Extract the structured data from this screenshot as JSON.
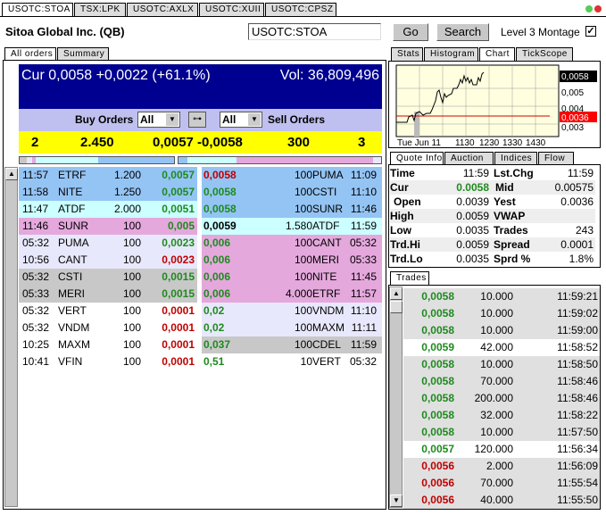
{
  "top_tabs": [
    "USOTC:STOA",
    "TSX:LPK",
    "USOTC:AXLX",
    "USOTC:XUII",
    "USOTC:CPSZ"
  ],
  "header": {
    "company": "Sitoa Global Inc. (QB)",
    "symbol_input": "USOTC:STOA",
    "go": "Go",
    "search": "Search",
    "level3_label": "Level 3 Montage",
    "level3_checked": true
  },
  "left_tabs": [
    "All orders",
    "Summary"
  ],
  "banner": {
    "cur": "Cur 0,0058 +0,0022 (+61.1%)",
    "vol": "Vol: 36,809,496"
  },
  "filters": {
    "buy_label": "Buy Orders",
    "buy_select": "All",
    "sell_select": "All",
    "sell_label": "Sell Orders"
  },
  "summary": {
    "buy_count": "2",
    "buy_size": "2.450",
    "bid": "0,0057",
    "ask": "-0,0058",
    "sell_size": "300",
    "sell_count": "3"
  },
  "colors": {
    "blue": "#94c4f4",
    "cyan": "#ccffff",
    "pink": "#e4a8dc",
    "lavender": "#e8e8fc",
    "gray": "#c8c8c8",
    "white": "#ffffff",
    "banner": "#000090",
    "yellow": "#ffff00",
    "green": "#1e8a1e",
    "red": "#c00000"
  },
  "buy_orders": [
    {
      "time": "11:57",
      "mm": "ETRF",
      "size": "1.200",
      "price": "0,0057",
      "pc": "g",
      "bg": "blue"
    },
    {
      "time": "11:58",
      "mm": "NITE",
      "size": "1.250",
      "price": "0,0057",
      "pc": "g",
      "bg": "blue"
    },
    {
      "time": "11:47",
      "mm": "ATDF",
      "size": "2.000",
      "price": "0,0051",
      "pc": "g",
      "bg": "cyan"
    },
    {
      "time": "11:46",
      "mm": "SUNR",
      "size": "100",
      "price": "0,005",
      "pc": "g",
      "bg": "pink"
    },
    {
      "time": "05:32",
      "mm": "PUMA",
      "size": "100",
      "price": "0,0023",
      "pc": "g",
      "bg": "lavender"
    },
    {
      "time": "10:56",
      "mm": "CANT",
      "size": "100",
      "price": "0,0023",
      "pc": "r",
      "bg": "lavender"
    },
    {
      "time": "05:32",
      "mm": "CSTI",
      "size": "100",
      "price": "0,0015",
      "pc": "g",
      "bg": "gray"
    },
    {
      "time": "05:33",
      "mm": "MERI",
      "size": "100",
      "price": "0,0015",
      "pc": "g",
      "bg": "gray"
    },
    {
      "time": "05:32",
      "mm": "VERT",
      "size": "100",
      "price": "0,0001",
      "pc": "r",
      "bg": "white"
    },
    {
      "time": "05:32",
      "mm": "VNDM",
      "size": "100",
      "price": "0,0001",
      "pc": "r",
      "bg": "white"
    },
    {
      "time": "10:25",
      "mm": "MAXM",
      "size": "100",
      "price": "0,0001",
      "pc": "r",
      "bg": "white"
    },
    {
      "time": "10:41",
      "mm": "VFIN",
      "size": "100",
      "price": "0,0001",
      "pc": "r",
      "bg": "white"
    }
  ],
  "sell_orders": [
    {
      "price": "0,0058",
      "pc": "r",
      "size": "100",
      "mm": "PUMA",
      "time": "11:09",
      "bg": "blue"
    },
    {
      "price": "0,0058",
      "pc": "g",
      "size": "100",
      "mm": "CSTI",
      "time": "11:10",
      "bg": "blue"
    },
    {
      "price": "0,0058",
      "pc": "g",
      "size": "100",
      "mm": "SUNR",
      "time": "11:46",
      "bg": "blue"
    },
    {
      "price": "0,0059",
      "pc": "k",
      "size": "1.580",
      "mm": "ATDF",
      "time": "11:59",
      "bg": "cyan"
    },
    {
      "price": "0,006",
      "pc": "g",
      "size": "100",
      "mm": "CANT",
      "time": "05:32",
      "bg": "pink"
    },
    {
      "price": "0,006",
      "pc": "g",
      "size": "100",
      "mm": "MERI",
      "time": "05:33",
      "bg": "pink"
    },
    {
      "price": "0,006",
      "pc": "g",
      "size": "100",
      "mm": "NITE",
      "time": "11:45",
      "bg": "pink"
    },
    {
      "price": "0,006",
      "pc": "g",
      "size": "4.000",
      "mm": "ETRF",
      "time": "11:57",
      "bg": "pink"
    },
    {
      "price": "0,02",
      "pc": "g",
      "size": "100",
      "mm": "VNDM",
      "time": "11:10",
      "bg": "lavender"
    },
    {
      "price": "0,02",
      "pc": "g",
      "size": "100",
      "mm": "MAXM",
      "time": "11:11",
      "bg": "lavender"
    },
    {
      "price": "0,037",
      "pc": "g",
      "size": "100",
      "mm": "CDEL",
      "time": "11:59",
      "bg": "gray"
    },
    {
      "price": "0,51",
      "pc": "g",
      "size": "10",
      "mm": "VERT",
      "time": "05:32",
      "bg": "white"
    }
  ],
  "right_tabs": [
    "Stats",
    "Histogram",
    "Chart",
    "TickScope"
  ],
  "chart": {
    "x_labels": [
      "Tue Jun 11",
      "1130",
      "1230",
      "1330",
      "1430"
    ],
    "y_labels": [
      "0,005",
      "0,004",
      "0,003"
    ],
    "cur_label": "0,0058",
    "yest_label": "0,0036"
  },
  "quote_tabs": [
    "Quote Info",
    "Auction",
    "Indices",
    "Flow"
  ],
  "quote": [
    {
      "l1": "Time",
      "v1": "11:59",
      "l2": "Lst.Chg",
      "v2": "11:59"
    },
    {
      "l1": "Cur",
      "v1": "0.0058",
      "l2": "Mid",
      "v2": "0.00575"
    },
    {
      "l1": "Open",
      "v1": "0.0039",
      "l2": "Yest",
      "v2": "0.0036"
    },
    {
      "l1": "High",
      "v1": "0.0059",
      "l2": "VWAP",
      "v2": ""
    },
    {
      "l1": "Low",
      "v1": "0.0035",
      "l2": "Trades",
      "v2": "243"
    },
    {
      "l1": "Trd.Hi",
      "v1": "0.0059",
      "l2": "Spread",
      "v2": "0.0001"
    },
    {
      "l1": "Trd.Lo",
      "v1": "0.0035",
      "l2": "Sprd %",
      "v2": "1.8%"
    }
  ],
  "trades_tab": "Trades",
  "trades": [
    {
      "price": "0,0058",
      "pc": "g",
      "size": "10.000",
      "time": "11:59:21",
      "hl": false
    },
    {
      "price": "0,0058",
      "pc": "g",
      "size": "10.000",
      "time": "11:59:02",
      "hl": false
    },
    {
      "price": "0,0058",
      "pc": "g",
      "size": "10.000",
      "time": "11:59:00",
      "hl": false
    },
    {
      "price": "0,0059",
      "pc": "g",
      "size": "42.000",
      "time": "11:58:52",
      "hl": true
    },
    {
      "price": "0,0058",
      "pc": "g",
      "size": "10.000",
      "time": "11:58:50",
      "hl": false
    },
    {
      "price": "0,0058",
      "pc": "g",
      "size": "70.000",
      "time": "11:58:46",
      "hl": false
    },
    {
      "price": "0,0058",
      "pc": "g",
      "size": "200.000",
      "time": "11:58:46",
      "hl": false
    },
    {
      "price": "0,0058",
      "pc": "g",
      "size": "32.000",
      "time": "11:58:22",
      "hl": false
    },
    {
      "price": "0,0058",
      "pc": "g",
      "size": "10.000",
      "time": "11:57:50",
      "hl": false
    },
    {
      "price": "0,0057",
      "pc": "g",
      "size": "120.000",
      "time": "11:56:34",
      "hl": true
    },
    {
      "price": "0,0056",
      "pc": "r",
      "size": "2.000",
      "time": "11:56:09",
      "hl": false
    },
    {
      "price": "0,0056",
      "pc": "r",
      "size": "70.000",
      "time": "11:55:54",
      "hl": false
    },
    {
      "price": "0,0056",
      "pc": "r",
      "size": "40.000",
      "time": "11:55:50",
      "hl": false
    }
  ]
}
